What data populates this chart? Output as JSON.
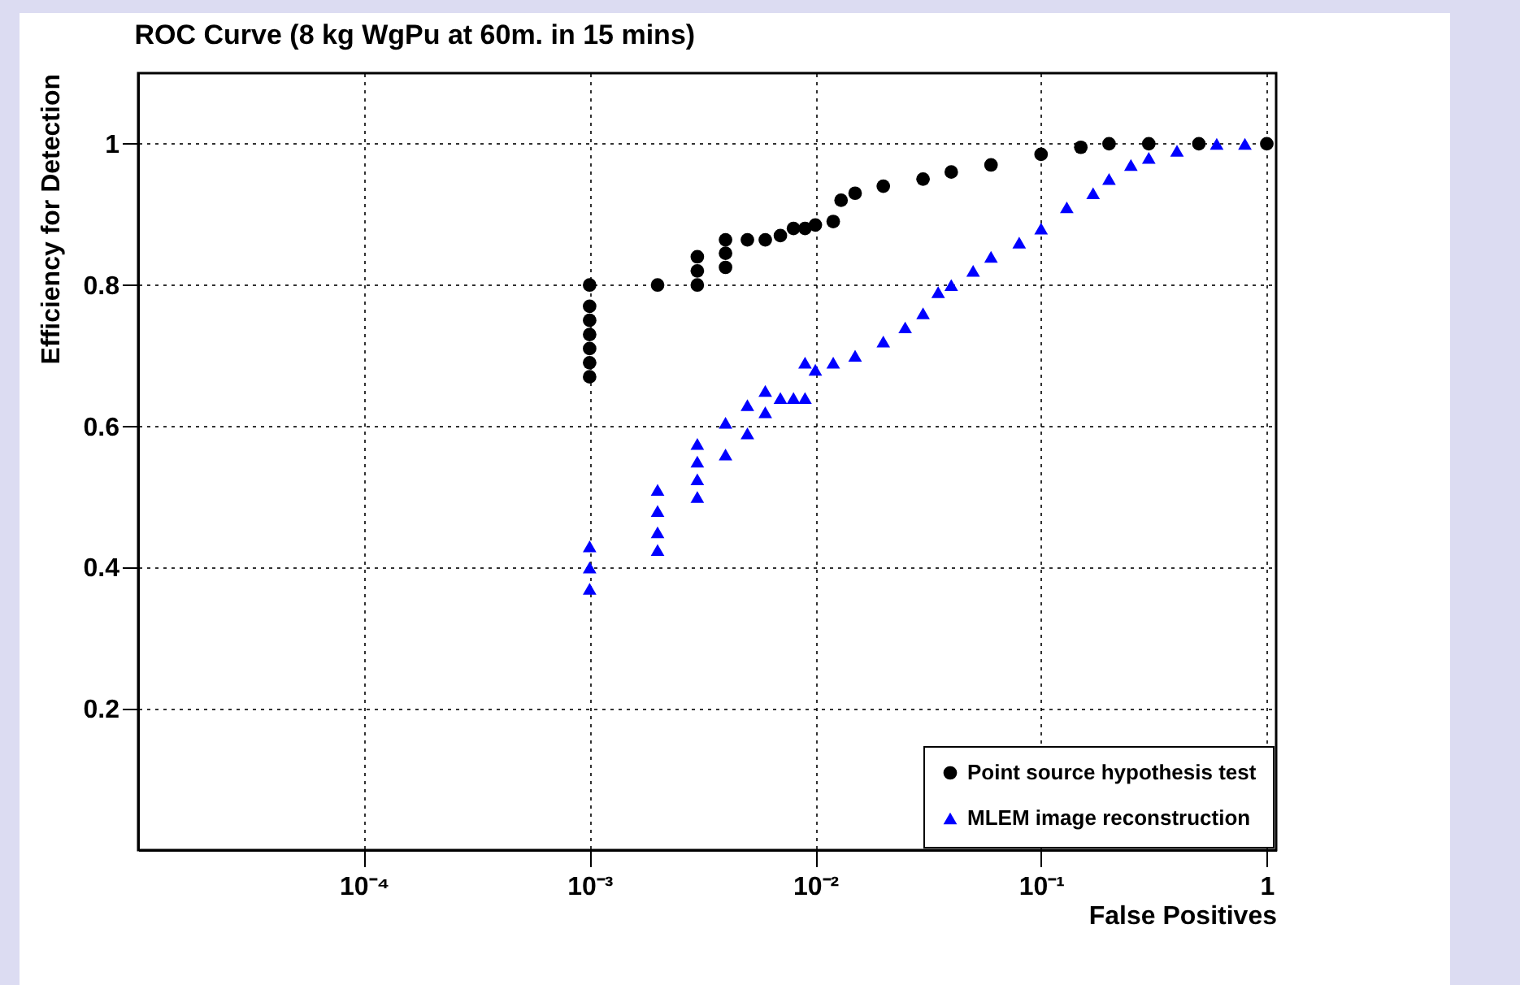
{
  "chart_data": {
    "type": "scatter",
    "title": "ROC Curve (8 kg WgPu at 60m. in 15 mins)",
    "xlabel": "False Positives",
    "ylabel": "Efficiency for Detection",
    "log": "x",
    "xlim": [
      1e-05,
      1.1
    ],
    "ylim": [
      0,
      1.1
    ],
    "xticks": [
      {
        "value": 0.0001,
        "label": "10⁻⁴"
      },
      {
        "value": 0.001,
        "label": "10⁻³"
      },
      {
        "value": 0.01,
        "label": "10⁻²"
      },
      {
        "value": 0.1,
        "label": "10⁻¹"
      },
      1
    ],
    "yticks": [
      0.2,
      0.4,
      0.6,
      0.8,
      1
    ],
    "grid": true,
    "legend": "bottom right",
    "series": [
      {
        "name": "Point source hypothesis test",
        "color": "#000000",
        "marker": "circle",
        "x": [
          0.001,
          0.001,
          0.001,
          0.001,
          0.001,
          0.001,
          0.001,
          0.002,
          0.003,
          0.003,
          0.003,
          0.004,
          0.004,
          0.004,
          0.005,
          0.006,
          0.007,
          0.008,
          0.009,
          0.01,
          0.012,
          0.013,
          0.015,
          0.02,
          0.03,
          0.04,
          0.06,
          0.1,
          0.15,
          0.2,
          0.3,
          0.5,
          1
        ],
        "values": [
          0.67,
          0.69,
          0.71,
          0.73,
          0.75,
          0.77,
          0.8,
          0.8,
          0.8,
          0.82,
          0.84,
          0.825,
          0.845,
          0.864,
          0.864,
          0.864,
          0.87,
          0.88,
          0.88,
          0.885,
          0.89,
          0.92,
          0.93,
          0.94,
          0.95,
          0.96,
          0.97,
          0.985,
          0.995,
          1,
          1,
          1,
          1
        ]
      },
      {
        "name": "MLEM image reconstruction",
        "color": "#0000ff",
        "marker": "triangle",
        "x": [
          0.001,
          0.001,
          0.001,
          0.002,
          0.002,
          0.002,
          0.002,
          0.003,
          0.003,
          0.003,
          0.003,
          0.004,
          0.004,
          0.005,
          0.005,
          0.006,
          0.006,
          0.007,
          0.008,
          0.009,
          0.009,
          0.01,
          0.012,
          0.015,
          0.02,
          0.025,
          0.03,
          0.035,
          0.04,
          0.05,
          0.06,
          0.08,
          0.1,
          0.13,
          0.17,
          0.2,
          0.25,
          0.3,
          0.4,
          0.6,
          0.8
        ],
        "values": [
          0.37,
          0.4,
          0.43,
          0.425,
          0.45,
          0.48,
          0.51,
          0.5,
          0.525,
          0.55,
          0.575,
          0.56,
          0.605,
          0.59,
          0.63,
          0.62,
          0.65,
          0.64,
          0.64,
          0.64,
          0.69,
          0.68,
          0.69,
          0.7,
          0.72,
          0.74,
          0.76,
          0.79,
          0.8,
          0.82,
          0.84,
          0.86,
          0.88,
          0.91,
          0.93,
          0.95,
          0.97,
          0.98,
          0.99,
          1,
          1
        ]
      }
    ]
  }
}
